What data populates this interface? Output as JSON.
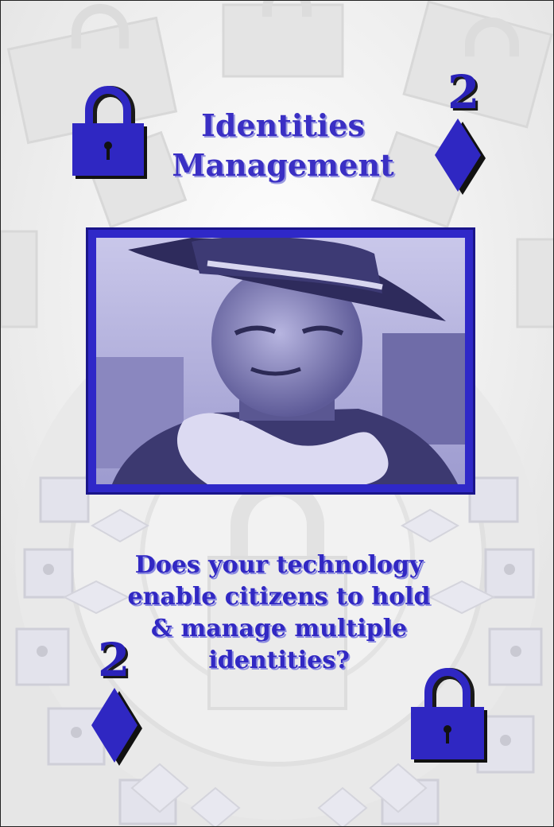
{
  "card": {
    "title_line1": "Identities",
    "title_line2": "Management",
    "rank_top": "2",
    "rank_bottom": "2",
    "question_lines": [
      "Does your technology",
      "enable citizens to hold",
      "& manage multiple",
      "identities?"
    ],
    "suit_icon": "diamond-icon",
    "corner_icon": "padlock-icon",
    "colors": {
      "accent": "#3128c3",
      "frame": "#2f28c8",
      "background": "#f6f6f6"
    }
  }
}
